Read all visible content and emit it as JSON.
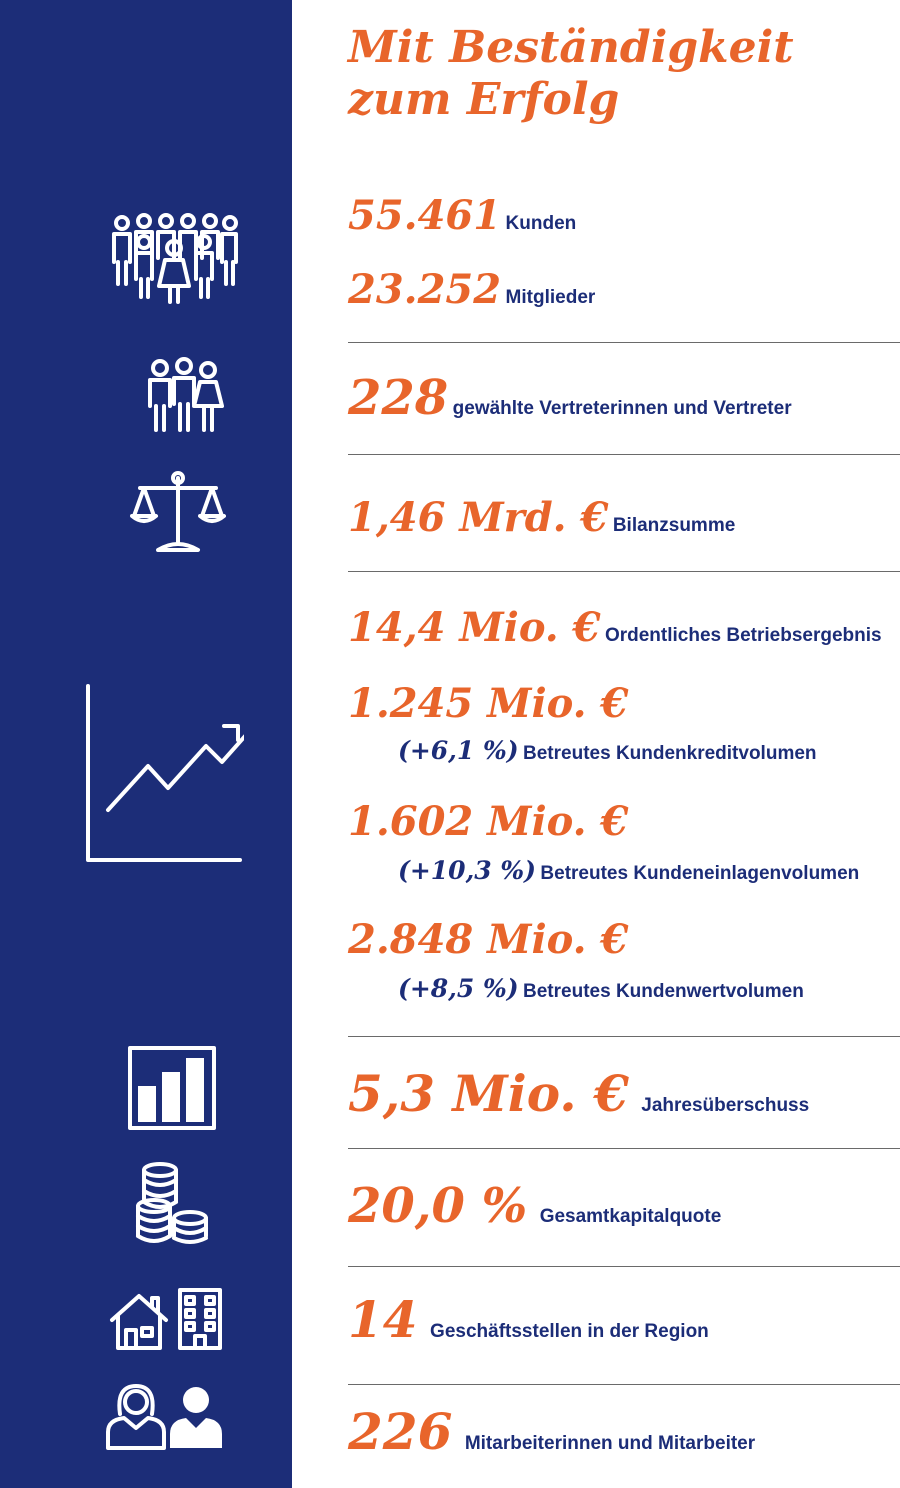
{
  "title": {
    "line1": "Mit Beständigkeit",
    "line2": "zum Erfolg"
  },
  "stats": {
    "kunden": {
      "value": "55.461",
      "label": "Kunden"
    },
    "mitglieder": {
      "value": "23.252",
      "label": "Mitglieder"
    },
    "vertreter": {
      "value": "228",
      "label": "gewählte Vertreterinnen und Vertreter"
    },
    "bilanzsumme": {
      "value": "1,46 Mrd. €",
      "label": "Bilanzsumme"
    },
    "betriebsergebnis": {
      "value": "14,4 Mio. €",
      "label": "Ordentliches Betriebsergebnis"
    },
    "kundenkredit": {
      "value": "1.245 Mio. €",
      "change": "(+6,1 %)",
      "label": "Betreutes Kundenkreditvolumen"
    },
    "kundeneinlagen": {
      "value": "1.602 Mio. €",
      "change": "(+10,3 %)",
      "label": "Betreutes Kundeneinlagenvolumen"
    },
    "kundenwert": {
      "value": "2.848 Mio. €",
      "change": "(+8,5 %)",
      "label": "Betreutes Kundenwertvolumen"
    },
    "jahresueberschuss": {
      "value": "5,3 Mio. €",
      "label": "Jahresüberschuss"
    },
    "kapitalquote": {
      "value": "20,0 %",
      "label": "Gesamtkapitalquote"
    },
    "geschaeftsstellen": {
      "value": "14",
      "label": "Geschäftsstellen in der Region"
    },
    "mitarbeiter": {
      "value": "226",
      "label": "Mitarbeiterinnen und Mitarbeiter"
    }
  },
  "icons": [
    "crowd-icon",
    "group-icon",
    "scale-icon",
    "growth-chart-icon",
    "bar-chart-icon",
    "coins-icon",
    "house-icon",
    "office-building-icon",
    "employees-icon"
  ],
  "colors": {
    "accent": "#e8652b",
    "sidebar": "#1c2d78",
    "text": "#1c2d78",
    "rule": "#6a6a6a"
  }
}
